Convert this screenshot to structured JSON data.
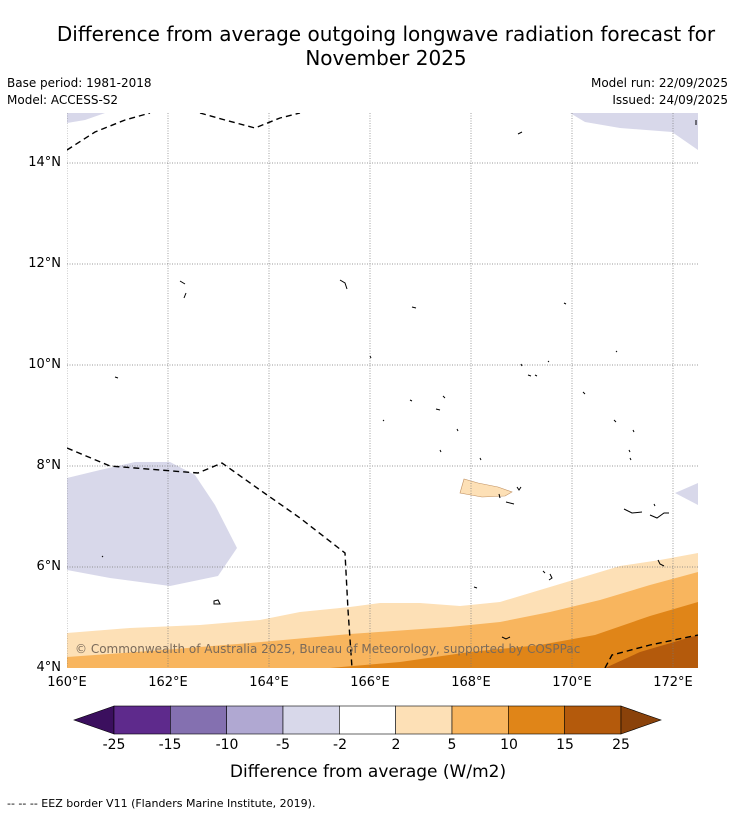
{
  "title_line1": "Difference from average outgoing longwave radiation forecast for",
  "title_line2": "November 2025",
  "meta": {
    "base_period": "Base period: 1981-2018",
    "model": "Model: ACCESS-S2",
    "model_run": "Model run: 22/09/2025",
    "issued": "Issued: 24/09/2025"
  },
  "map": {
    "lat_labels": [
      "14°N",
      "12°N",
      "10°N",
      "8°N",
      "6°N",
      "4°N"
    ],
    "lon_labels": [
      "160°E",
      "162°E",
      "164°E",
      "166°E",
      "168°E",
      "170°E",
      "172°E"
    ],
    "copyright": "© Commonwealth of Australia 2025, Bureau of Meteorology, supported by COSPPac"
  },
  "colorbar": {
    "ticks": [
      "-25",
      "-15",
      "-10",
      "-5",
      "-2",
      "2",
      "5",
      "10",
      "15",
      "25"
    ],
    "colors": [
      "#3b0f5e",
      "#5e2a8c",
      "#8470b0",
      "#b0a8d2",
      "#d8d8ea",
      "#ffffff",
      "#fde0b6",
      "#f8b55e",
      "#e08518",
      "#b45a0c",
      "#8a420a"
    ],
    "title": "Difference from average (W/m2)"
  },
  "footer": "--  --  -- EEZ border V11 (Flanders Marine Institute, 2019)."
}
